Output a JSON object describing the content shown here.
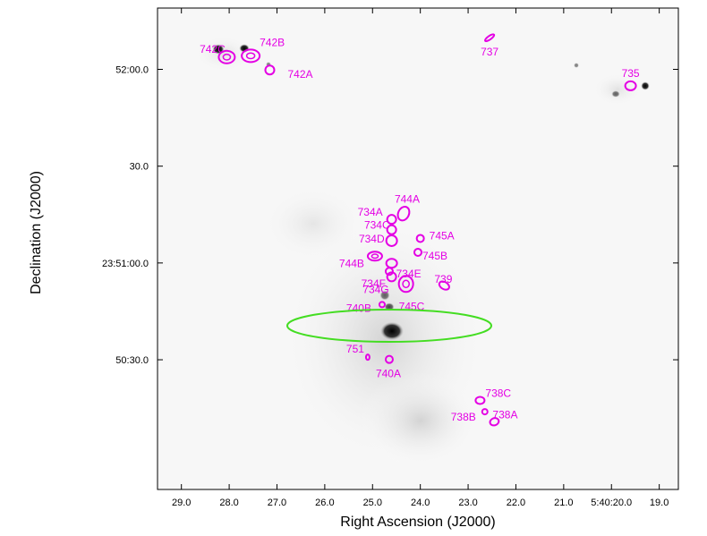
{
  "plot": {
    "xlabel": "Right Ascension (J2000)",
    "ylabel": "Declination (J2000)",
    "x_ticks": [
      {
        "ra": 29.0,
        "label": "29.0"
      },
      {
        "ra": 28.0,
        "label": "28.0"
      },
      {
        "ra": 27.0,
        "label": "27.0"
      },
      {
        "ra": 26.0,
        "label": "26.0"
      },
      {
        "ra": 25.0,
        "label": "25.0"
      },
      {
        "ra": 24.0,
        "label": "24.0"
      },
      {
        "ra": 23.0,
        "label": "23.0"
      },
      {
        "ra": 22.0,
        "label": "22.0"
      },
      {
        "ra": 21.0,
        "label": "21.0"
      },
      {
        "ra": 20.0,
        "label": "5:40:20.0"
      },
      {
        "ra": 19.0,
        "label": "19.0"
      }
    ],
    "y_ticks": [
      {
        "dec": 120,
        "label": "52:00.0"
      },
      {
        "dec": 90,
        "label": "30.0"
      },
      {
        "dec": 60,
        "label": "23:51:00.0"
      },
      {
        "dec": 30,
        "label": "50:30.0"
      }
    ],
    "ra_range": [
      29.5,
      18.6
    ],
    "dec_range": [
      -10.2,
      139.0
    ],
    "colors": {
      "contour": "#e400e4",
      "label": "#e400e4",
      "beam_ellipse": "#44dd22",
      "frame": "#000000"
    }
  },
  "sources": [
    {
      "name": "742C",
      "ra": 28.05,
      "dec": 123.8
    },
    {
      "name": "742B",
      "ra": 27.55,
      "dec": 124.2
    },
    {
      "name": "742A",
      "ra": 27.15,
      "dec": 119.8
    },
    {
      "name": "737",
      "ra": 22.55,
      "dec": 129.8
    },
    {
      "name": "735",
      "ra": 19.6,
      "dec": 114.9
    },
    {
      "name": "744A",
      "ra": 24.35,
      "dec": 75.3
    },
    {
      "name": "734A",
      "ra": 24.6,
      "dec": 73.5
    },
    {
      "name": "734C",
      "ra": 24.6,
      "dec": 70.3
    },
    {
      "name": "734D",
      "ra": 24.6,
      "dec": 66.9
    },
    {
      "name": "745A",
      "ra": 24.0,
      "dec": 67.6
    },
    {
      "name": "744B",
      "ra": 24.95,
      "dec": 62.1
    },
    {
      "name": "745B",
      "ra": 24.05,
      "dec": 63.3
    },
    {
      "name": "734E",
      "ra": 24.6,
      "dec": 59.9
    },
    {
      "name": "734F",
      "ra": 24.65,
      "dec": 57.4
    },
    {
      "name": "734G",
      "ra": 24.6,
      "dec": 55.7
    },
    {
      "name": "739",
      "ra": 23.5,
      "dec": 53.0
    },
    {
      "name": "745C",
      "ra": 24.3,
      "dec": 53.5
    },
    {
      "name": "740B",
      "ra": 24.8,
      "dec": 47.1
    },
    {
      "name": "751",
      "ra": 25.1,
      "dec": 30.8
    },
    {
      "name": "740A",
      "ra": 24.65,
      "dec": 30.1
    },
    {
      "name": "738C",
      "ra": 22.75,
      "dec": 17.4
    },
    {
      "name": "738B",
      "ra": 22.65,
      "dec": 13.9
    },
    {
      "name": "738A",
      "ra": 22.45,
      "dec": 10.8
    }
  ]
}
